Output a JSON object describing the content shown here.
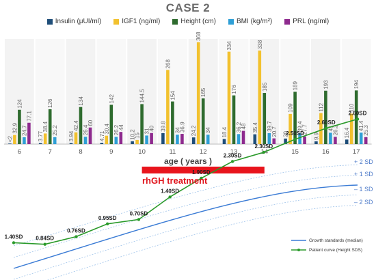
{
  "chart_data": [
    {
      "type": "bar",
      "title": "CASE 2",
      "categories": [
        "6",
        "7",
        "8",
        "9",
        "10",
        "11",
        "12",
        "13",
        "14",
        "15",
        "16",
        "17"
      ],
      "series": [
        {
          "name": "Insulin (μUI/ml)",
          "color": "#1f4e79",
          "values": [
            2,
            3.77,
            3.94,
            4.71,
            10.2,
            39.8,
            24.2,
            18.4,
            35.4,
            20,
            9.9,
            16.4
          ],
          "labels": [
            "<2",
            "3.77",
            "3.94",
            "4.71",
            "10.2",
            "39.8",
            "24.2",
            "18.4",
            "35.4",
            "20",
            "9.9",
            "16.4"
          ]
        },
        {
          "name": "IGF1 (ng/ml)",
          "color": "#f2c12e",
          "values": [
            32.9,
            38.4,
            42.4,
            30.4,
            15,
            268,
            368,
            334,
            338,
            109,
            112,
            110
          ],
          "labels": [
            "32.9",
            "38.4",
            "42.4",
            "30.4",
            "15",
            "268",
            "368",
            "334",
            "338",
            "109",
            "112",
            "110"
          ]
        },
        {
          "name": "Height (cm)",
          "color": "#2e6b2e",
          "values": [
            124,
            126,
            134,
            142,
            144.5,
            154,
            165,
            176,
            185,
            189,
            193,
            194
          ],
          "labels": [
            "124",
            "126",
            "134",
            "142",
            "144.5",
            "154",
            "165",
            "176",
            "185",
            "189",
            "193",
            "194"
          ]
        },
        {
          "name": "BMI (kg/m²)",
          "color": "#2e9fd6",
          "values": [
            24.7,
            25.2,
            26.4,
            26.2,
            31,
            34,
            34,
            36.2,
            39.7,
            39.4,
            41,
            41.4
          ],
          "labels": [
            "24.7",
            "25.2",
            "26.4",
            "26.2",
            "31",
            "34",
            "34",
            "36.2",
            "39.7",
            "39.4",
            "41",
            "41.4"
          ]
        },
        {
          "name": "PRL (ng/ml)",
          "color": "#8e2a8e",
          "values": [
            77.1,
            null,
            60,
            44,
            40,
            36.9,
            null,
            48,
            20.7,
            27.7,
            26.2,
            25.3
          ],
          "labels": [
            "77.1",
            "",
            "60",
            "44",
            "40",
            "36.9",
            "",
            "48",
            "20.7",
            "27.7",
            "26.2",
            "25.3"
          ]
        }
      ],
      "xlabel": "age ( years )",
      "ylim": [
        0,
        380
      ]
    },
    {
      "type": "line",
      "series": [
        {
          "name": "Patient curve (Height SDS)",
          "color": "#2a9a2a",
          "labels": [
            "1.40SD",
            "0.84SD",
            "0.76SD",
            "0.95SD",
            "0.70SD",
            "1.40SD",
            "1.90SD",
            "2.30SD",
            "2.30SD",
            "2.50SD",
            "2.60SD",
            "2.60SD"
          ],
          "values": [
            1.4,
            0.84,
            0.76,
            0.95,
            0.7,
            1.4,
            1.9,
            2.3,
            2.3,
            2.5,
            2.6,
            2.6
          ]
        },
        {
          "name": "Growth standards (median)",
          "color": "#3a7bd5"
        }
      ],
      "bands": [
        "+ 2 SD",
        "+ 1 SD",
        "– 1 SD",
        "– 2 SD"
      ],
      "annotation": "rhGH treatment",
      "annotation_span": [
        "10",
        "14"
      ]
    }
  ]
}
